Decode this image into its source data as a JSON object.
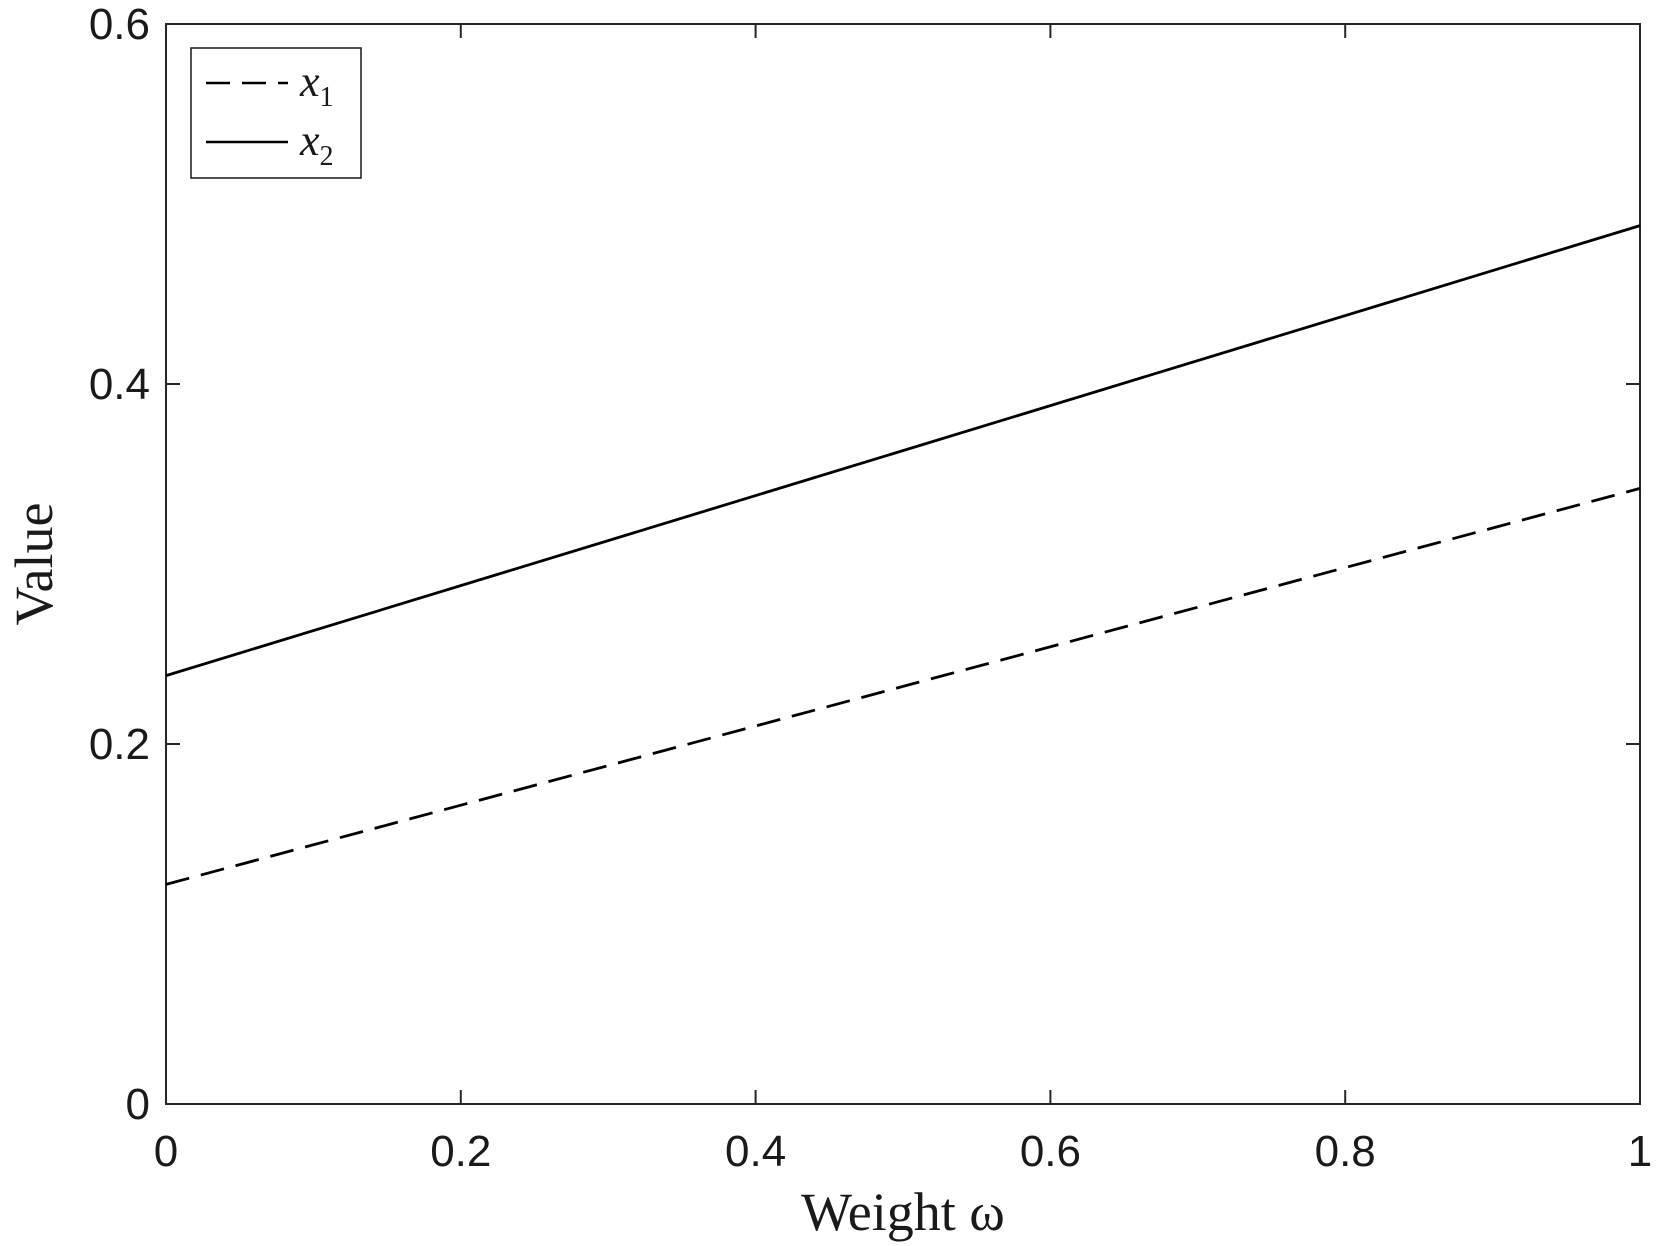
{
  "chart_data": {
    "type": "line",
    "xlabel": "Weight ω",
    "ylabel": "Value",
    "xlim": [
      0,
      1
    ],
    "ylim": [
      0,
      0.6
    ],
    "xticks": [
      0,
      0.2,
      0.4,
      0.6,
      0.8,
      1
    ],
    "xtick_labels": [
      "0",
      "0.2",
      "0.4",
      "0.6",
      "0.8",
      "1"
    ],
    "yticks": [
      0,
      0.2,
      0.4,
      0.6
    ],
    "ytick_labels": [
      "0",
      "0.2",
      "0.4",
      "0.6"
    ],
    "grid": false,
    "legend_position": "top-left",
    "series": [
      {
        "name": "x1",
        "name_base": "x",
        "name_sub": "1",
        "style": "dashed",
        "color": "#000000",
        "x": [
          0,
          1
        ],
        "y": [
          0.122,
          0.342
        ]
      },
      {
        "name": "x2",
        "name_base": "x",
        "name_sub": "2",
        "style": "solid",
        "color": "#000000",
        "x": [
          0,
          1
        ],
        "y": [
          0.238,
          0.488
        ]
      }
    ]
  }
}
